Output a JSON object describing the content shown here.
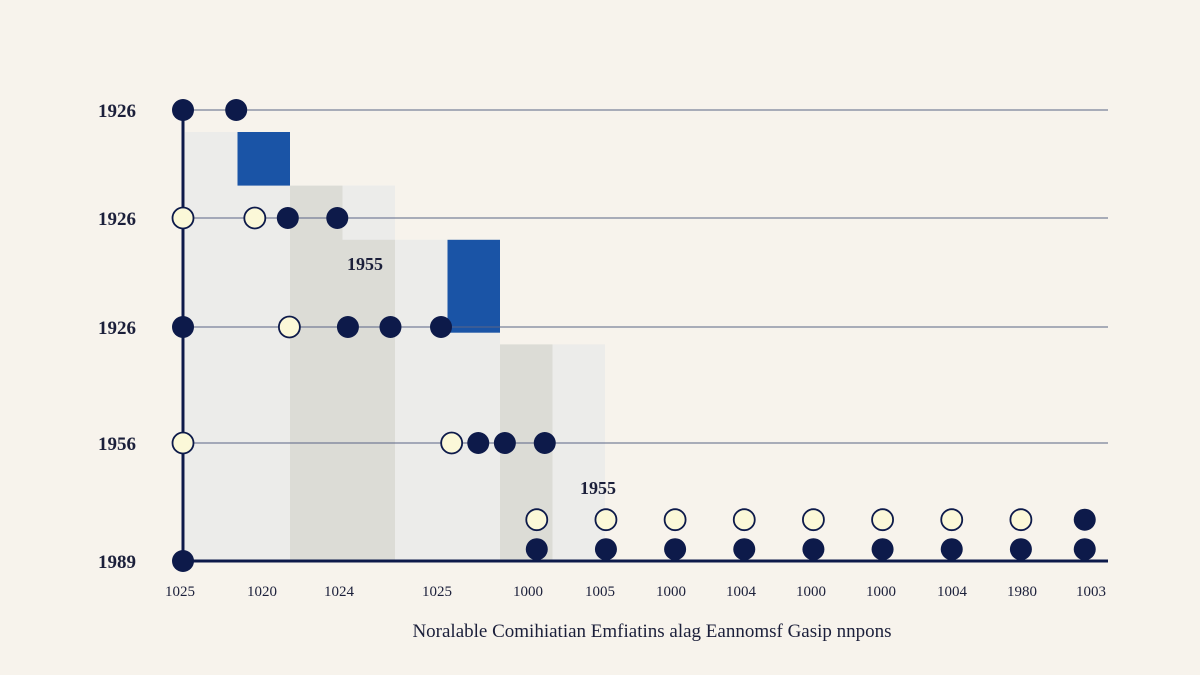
{
  "chart_data": {
    "type": "scatter",
    "title": "",
    "xlabel": "Noralable Comihiatian Emfiatins alag Eannomsf Gasip nnpons",
    "ylabel": "",
    "x_tick_labels": [
      "1025",
      "1020",
      "1024",
      "1025",
      "1000",
      "1005",
      "1000",
      "1004",
      "1000",
      "1000",
      "1004",
      "1980",
      "1003"
    ],
    "y_tick_labels": [
      "1926",
      "1926",
      "1926",
      "1956",
      "1989"
    ],
    "annotations": [
      "1955",
      "1955"
    ],
    "colors": {
      "dark": "#0d1a4a",
      "light": "#fbf8d8",
      "accent": "#1a54a6",
      "step": "#dcdcd6",
      "step_light": "#ececea"
    },
    "steps": [
      {
        "col": 0,
        "level": 0.2,
        "highlight": false
      },
      {
        "col": 1,
        "level": 0.2,
        "highlight": true,
        "highlight_bottom": 0.89
      },
      {
        "col": 1,
        "level": 0.7,
        "highlight": false
      },
      {
        "col": 2,
        "level": 0.7,
        "highlight": false
      },
      {
        "col": 3,
        "level": 0.7,
        "highlight": false
      },
      {
        "col": 3,
        "level": 1.2,
        "highlight": false
      },
      {
        "col": 4,
        "level": 1.2,
        "highlight": false
      },
      {
        "col": 5,
        "level": 1.2,
        "highlight": true,
        "highlight_bottom": 2.05
      },
      {
        "col": 5,
        "level": 2.05,
        "highlight": false
      },
      {
        "col": 6,
        "level": 2.15,
        "highlight": false
      },
      {
        "col": 7,
        "level": 2.15,
        "highlight": false
      }
    ],
    "series": [
      {
        "name": "",
        "style": "dark",
        "points": [
          [
            0,
            0
          ],
          [
            1,
            0
          ],
          [
            1.97,
            1
          ],
          [
            2.9,
            1
          ],
          [
            0,
            2
          ],
          [
            3.1,
            2
          ],
          [
            3.9,
            2
          ],
          [
            4.85,
            2
          ],
          [
            5.55,
            3
          ],
          [
            6.05,
            3
          ],
          [
            6.8,
            3
          ],
          [
            0,
            4
          ]
        ]
      },
      {
        "name": "",
        "style": "light",
        "points": [
          [
            0,
            1
          ],
          [
            1.35,
            1
          ],
          [
            2,
            2
          ],
          [
            0,
            3
          ],
          [
            5.05,
            3
          ]
        ]
      },
      {
        "name": "",
        "style": "light",
        "points": [
          [
            6.65,
            3.65
          ],
          [
            7.95,
            3.65
          ],
          [
            9.25,
            3.65
          ],
          [
            10.55,
            3.65
          ],
          [
            11.85,
            3.65
          ],
          [
            13.15,
            3.65
          ],
          [
            14.45,
            3.65
          ],
          [
            15.75,
            3.65
          ]
        ]
      },
      {
        "name": "",
        "style": "dark",
        "points": [
          [
            6.65,
            3.9
          ],
          [
            7.95,
            3.9
          ],
          [
            9.25,
            3.9
          ],
          [
            10.55,
            3.9
          ],
          [
            11.85,
            3.9
          ],
          [
            13.15,
            3.9
          ],
          [
            14.45,
            3.9
          ],
          [
            15.75,
            3.9
          ],
          [
            16.95,
            3.65
          ],
          [
            16.95,
            3.9
          ]
        ]
      }
    ]
  }
}
